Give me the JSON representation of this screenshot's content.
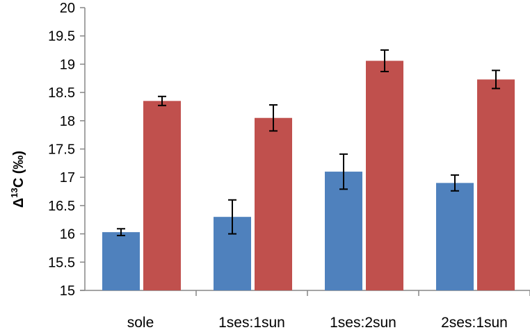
{
  "chart_data": {
    "type": "bar",
    "title": "",
    "xlabel": "",
    "ylabel": "Δ¹³C (‰)",
    "ylabel_parts": {
      "base": "Δ",
      "sup": "13",
      "rest": "C (‰)"
    },
    "ylim": [
      15,
      20
    ],
    "yticks": [
      "15",
      "15.5",
      "16",
      "16.5",
      "17",
      "17.5",
      "18",
      "18.5",
      "19",
      "19.5",
      "20"
    ],
    "ytick_values": [
      15,
      15.5,
      16,
      16.5,
      17,
      17.5,
      18,
      18.5,
      19,
      19.5,
      20
    ],
    "grid": false,
    "legend": "none",
    "categories": [
      "sole",
      "1ses:1sun",
      "1ses:2sun",
      "2ses:1sun"
    ],
    "series": [
      {
        "color": "#4f81bd",
        "values": [
          16.03,
          16.3,
          17.1,
          16.9
        ],
        "errors": [
          0.06,
          0.3,
          0.31,
          0.14
        ]
      },
      {
        "color": "#c0504d",
        "values": [
          18.35,
          18.05,
          19.06,
          18.73
        ],
        "errors": [
          0.08,
          0.23,
          0.19,
          0.16
        ]
      }
    ]
  }
}
